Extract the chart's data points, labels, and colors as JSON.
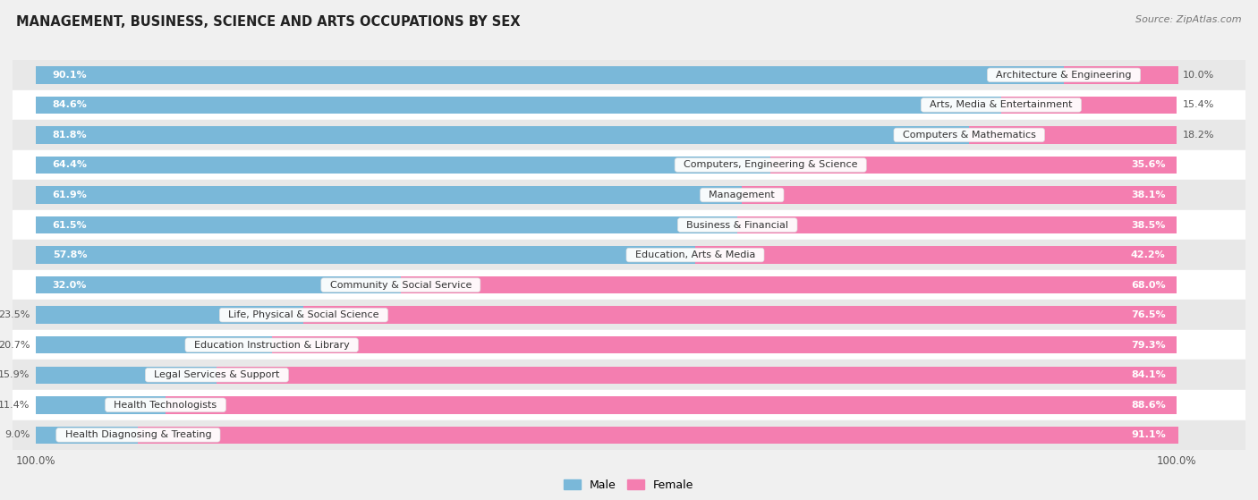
{
  "title": "MANAGEMENT, BUSINESS, SCIENCE AND ARTS OCCUPATIONS BY SEX",
  "source": "Source: ZipAtlas.com",
  "categories": [
    "Architecture & Engineering",
    "Arts, Media & Entertainment",
    "Computers & Mathematics",
    "Computers, Engineering & Science",
    "Management",
    "Business & Financial",
    "Education, Arts & Media",
    "Community & Social Service",
    "Life, Physical & Social Science",
    "Education Instruction & Library",
    "Legal Services & Support",
    "Health Technologists",
    "Health Diagnosing & Treating"
  ],
  "male_pct": [
    90.1,
    84.6,
    81.8,
    64.4,
    61.9,
    61.5,
    57.8,
    32.0,
    23.5,
    20.7,
    15.9,
    11.4,
    9.0
  ],
  "female_pct": [
    10.0,
    15.4,
    18.2,
    35.6,
    38.1,
    38.5,
    42.2,
    68.0,
    76.5,
    79.3,
    84.1,
    88.6,
    91.1
  ],
  "male_color": "#7ab8d9",
  "female_color": "#f47eb0",
  "bg_color": "#f0f0f0",
  "row_colors": [
    "#e8e8e8",
    "#ffffff"
  ],
  "bar_height": 0.58,
  "figsize": [
    14.06,
    5.59
  ],
  "dpi": 100,
  "label_fontsize": 8.0,
  "pct_fontsize": 8.0
}
